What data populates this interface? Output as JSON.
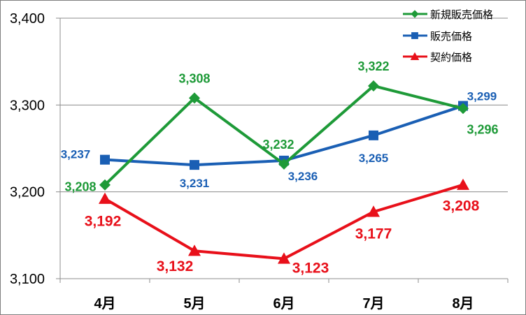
{
  "chart_data": {
    "type": "line",
    "categories": [
      "4月",
      "5月",
      "6月",
      "7月",
      "8月"
    ],
    "ylim": [
      3100,
      3400
    ],
    "yticks": [
      3100,
      3200,
      3300,
      3400
    ],
    "ytick_labels": [
      "3,100",
      "3,200",
      "3,300",
      "3,400"
    ],
    "grid": true,
    "legend_position": "top-right",
    "series": [
      {
        "name": "新規販売価格",
        "color": "#1e9a38",
        "marker": "diamond",
        "values": [
          3208,
          3308,
          3232,
          3322,
          3296
        ],
        "labels": [
          "3,208",
          "3,308",
          "3,232",
          "3,322",
          "3,296"
        ]
      },
      {
        "name": "販売価格",
        "color": "#1a5fb4",
        "marker": "square",
        "values": [
          3237,
          3231,
          3236,
          3265,
          3299
        ],
        "labels": [
          "3,237",
          "3,231",
          "3,236",
          "3,265",
          "3,299"
        ]
      },
      {
        "name": "契約価格",
        "color": "#e8101a",
        "marker": "triangle",
        "values": [
          3192,
          3132,
          3123,
          3177,
          3208
        ],
        "labels": [
          "3,192",
          "3,132",
          "3,123",
          "3,177",
          "3,208"
        ]
      }
    ]
  }
}
